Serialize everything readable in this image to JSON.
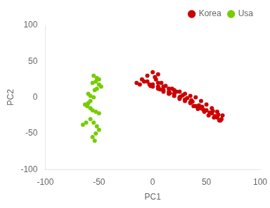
{
  "chart_data": {
    "type": "scatter",
    "xlabel": "PC1",
    "ylabel": "PC2",
    "xlim": [
      -100,
      100
    ],
    "ylim": [
      -100,
      100
    ],
    "xticks": [
      -100,
      -50,
      0,
      50,
      100
    ],
    "yticks": [
      -100,
      -50,
      0,
      50,
      100
    ],
    "grid": false,
    "legend": "upper right",
    "marker": "circle",
    "series": [
      {
        "name": "Korea",
        "color": "#CC0000",
        "values": [
          [
            -15,
            20
          ],
          [
            -10,
            25
          ],
          [
            -5,
            30
          ],
          [
            0,
            35
          ],
          [
            5,
            32
          ],
          [
            2,
            28
          ],
          [
            -8,
            22
          ],
          [
            -3,
            18
          ],
          [
            5,
            20
          ],
          [
            10,
            15
          ],
          [
            15,
            12
          ],
          [
            20,
            10
          ],
          [
            25,
            8
          ],
          [
            30,
            5
          ],
          [
            35,
            2
          ],
          [
            40,
            0
          ],
          [
            45,
            -5
          ],
          [
            50,
            -10
          ],
          [
            55,
            -15
          ],
          [
            60,
            -20
          ],
          [
            65,
            -25
          ],
          [
            0,
            15
          ],
          [
            5,
            12
          ],
          [
            10,
            8
          ],
          [
            15,
            5
          ],
          [
            20,
            2
          ],
          [
            25,
            -2
          ],
          [
            30,
            -5
          ],
          [
            35,
            -8
          ],
          [
            40,
            -12
          ],
          [
            45,
            -15
          ],
          [
            50,
            -18
          ],
          [
            55,
            -22
          ],
          [
            60,
            -28
          ],
          [
            63,
            -32
          ],
          [
            -5,
            22
          ],
          [
            0,
            18
          ],
          [
            5,
            15
          ],
          [
            10,
            10
          ],
          [
            15,
            8
          ],
          [
            20,
            5
          ],
          [
            25,
            0
          ],
          [
            30,
            -3
          ],
          [
            35,
            -7
          ],
          [
            38,
            -12
          ],
          [
            42,
            -16
          ],
          [
            48,
            -20
          ],
          [
            52,
            -25
          ],
          [
            57,
            -28
          ],
          [
            62,
            -32
          ],
          [
            3,
            25
          ],
          [
            8,
            20
          ],
          [
            12,
            16
          ],
          [
            18,
            12
          ],
          [
            22,
            8
          ],
          [
            28,
            3
          ],
          [
            32,
            -1
          ],
          [
            37,
            -6
          ],
          [
            43,
            -11
          ],
          [
            47,
            -17
          ],
          [
            53,
            -21
          ],
          [
            58,
            -26
          ],
          [
            64,
            -30
          ],
          [
            -12,
            18
          ],
          [
            -2,
            16
          ],
          [
            7,
            11
          ],
          [
            16,
            6
          ],
          [
            26,
            1
          ],
          [
            36,
            -4
          ],
          [
            46,
            -13
          ],
          [
            56,
            -19
          ],
          [
            61,
            -24
          ]
        ]
      },
      {
        "name": "Usa",
        "color": "#77CC00",
        "values": [
          [
            -55,
            30
          ],
          [
            -52,
            27
          ],
          [
            -50,
            25
          ],
          [
            -53,
            22
          ],
          [
            -56,
            20
          ],
          [
            -50,
            18
          ],
          [
            -48,
            15
          ],
          [
            -52,
            12
          ],
          [
            -54,
            10
          ],
          [
            -58,
            -30
          ],
          [
            -55,
            -35
          ],
          [
            -52,
            -40
          ],
          [
            -50,
            -45
          ],
          [
            -53,
            -50
          ],
          [
            -56,
            -55
          ],
          [
            -54,
            -60
          ],
          [
            -62,
            -35
          ],
          [
            -65,
            -38
          ],
          [
            -60,
            5
          ],
          [
            -58,
            2
          ],
          [
            -55,
            0
          ],
          [
            -58,
            -5
          ],
          [
            -60,
            -8
          ],
          [
            -63,
            -10
          ],
          [
            -61,
            -12
          ],
          [
            -58,
            -15
          ],
          [
            -56,
            -18
          ],
          [
            -53,
            -20
          ],
          [
            -50,
            -22
          ]
        ]
      }
    ]
  }
}
